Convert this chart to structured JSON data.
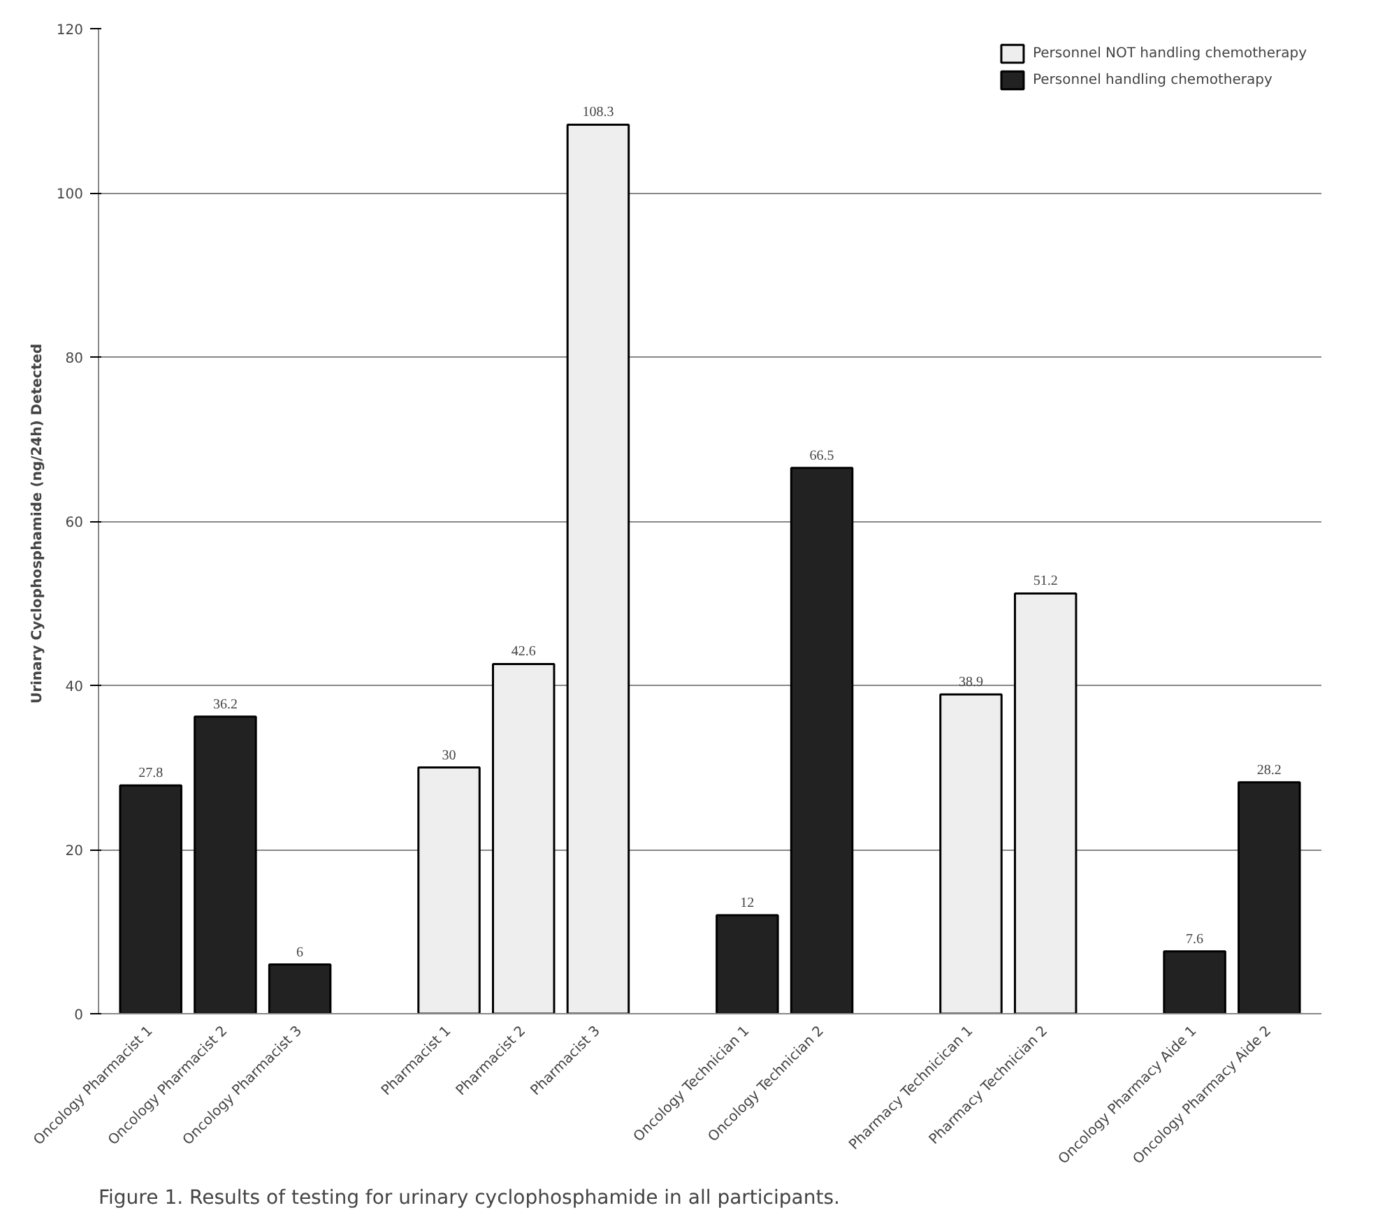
{
  "chart_data": {
    "type": "bar",
    "ylabel": "Urinary Cyclophosphamide  (ng/24h) Detected",
    "categories": [
      "Oncology Pharmacist 1",
      "Oncology Pharmacist 2",
      "Oncology Pharmacist 3",
      null,
      "Pharmacist 1",
      "Pharmacist 2",
      "Pharmacist 3",
      null,
      "Oncology Technician 1",
      "Oncology Technician 2",
      null,
      "Pharmacy Technicican 1",
      "Pharmacy Technician 2",
      null,
      "Oncology Pharmacy Aide 1",
      "Oncology Pharmacy Aide 2"
    ],
    "series": [
      {
        "name": "Personnel NOT handling chemotherapy",
        "color": "#eeeeee",
        "values": [
          null,
          null,
          null,
          null,
          30,
          42.6,
          108.3,
          null,
          null,
          null,
          null,
          38.9,
          51.2,
          null,
          null,
          null
        ]
      },
      {
        "name": "Personnel handling chemotherapy",
        "color": "#222222",
        "values": [
          27.8,
          36.2,
          6,
          null,
          null,
          null,
          null,
          null,
          12,
          66.5,
          null,
          null,
          null,
          null,
          7.6,
          28.2
        ]
      }
    ],
    "ylim": [
      0,
      120
    ],
    "yticks": [
      0,
      20,
      40,
      60,
      80,
      100,
      120
    ],
    "grid": "y",
    "legend": "top right",
    "data_labels": true,
    "annotations": [
      "Figure 1. Results of testing for urinary cyclophosphamide in all participants."
    ]
  }
}
